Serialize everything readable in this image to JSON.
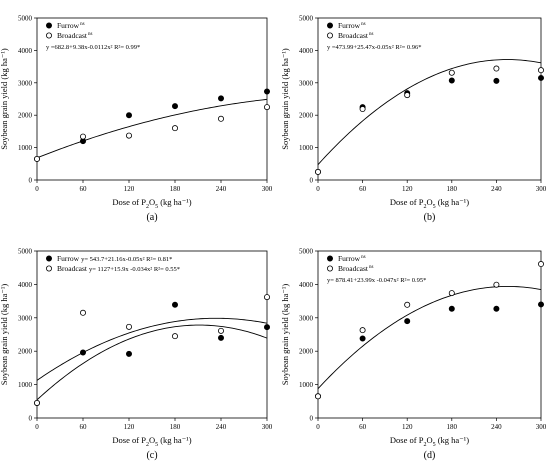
{
  "chart_data": [
    {
      "type": "scatter",
      "caption": "(a)",
      "ylabel": "Soybean grain yield (kg ha⁻¹)",
      "xlabel_parts": [
        "Dose of P",
        "2",
        "O",
        "5",
        " (kg ha⁻¹)"
      ],
      "xticks": [
        0,
        60,
        120,
        180,
        240,
        300
      ],
      "yticks": [
        0,
        1000,
        2000,
        3000,
        4000,
        5000
      ],
      "xlim": [
        0,
        300
      ],
      "ylim": [
        0,
        5000
      ],
      "legend_position": "top-left",
      "series": [
        {
          "name": "Furrow",
          "suffix": "ns",
          "marker": "filled",
          "x": [
            0,
            60,
            120,
            180,
            240,
            300
          ],
          "y": [
            650,
            1200,
            2000,
            2280,
            2520,
            2730
          ]
        },
        {
          "name": "Broadcast",
          "suffix": "ns",
          "marker": "open",
          "x": [
            0,
            60,
            120,
            180,
            240,
            300
          ],
          "y": [
            650,
            1340,
            1370,
            1600,
            1890,
            2250
          ]
        }
      ],
      "equation": "y =682.8+9.38x-0.0112x² R²= 0.99*",
      "curves": [
        {
          "a": 682.8,
          "b": 9.38,
          "c": -0.0112
        }
      ]
    },
    {
      "type": "scatter",
      "caption": "(b)",
      "ylabel": "Soybean grain yield (kg ha⁻¹)",
      "xlabel_parts": [
        "Dose of P",
        "2",
        "O",
        "5",
        " (kg ha⁻¹)"
      ],
      "xticks": [
        0,
        60,
        120,
        180,
        240,
        300
      ],
      "yticks": [
        0,
        1000,
        2000,
        3000,
        4000,
        5000
      ],
      "xlim": [
        0,
        300
      ],
      "ylim": [
        0,
        5000
      ],
      "legend_position": "top-left",
      "series": [
        {
          "name": "Furrow",
          "suffix": "ns",
          "marker": "filled",
          "x": [
            0,
            60,
            120,
            180,
            240,
            300
          ],
          "y": [
            250,
            2250,
            2680,
            3070,
            3060,
            3150
          ]
        },
        {
          "name": "Broadcast",
          "suffix": "ns",
          "marker": "open",
          "x": [
            0,
            60,
            120,
            180,
            240,
            300
          ],
          "y": [
            250,
            2190,
            2620,
            3310,
            3440,
            3390
          ]
        }
      ],
      "equation": "y =473.99+25.47x-0.05x² R²= 0.96*",
      "curves": [
        {
          "a": 473.99,
          "b": 25.47,
          "c": -0.05
        }
      ]
    },
    {
      "type": "scatter",
      "caption": "(c)",
      "ylabel": "Soybean grain yield (kg ha⁻¹)",
      "xlabel_parts": [
        "Dose of P",
        "2",
        "O",
        "5",
        " (kg ha⁻¹)"
      ],
      "xticks": [
        0,
        60,
        120,
        180,
        240,
        300
      ],
      "yticks": [
        0,
        1000,
        2000,
        3000,
        4000,
        5000
      ],
      "xlim": [
        0,
        300
      ],
      "ylim": [
        0,
        5000
      ],
      "legend_position": "top-left",
      "series": [
        {
          "name": "Furrow",
          "marker": "filled",
          "equation": "y= 543.7+21.16x-0.05x² R²= 0.81*",
          "x": [
            0,
            60,
            120,
            180,
            240,
            300
          ],
          "y": [
            450,
            1960,
            1920,
            3390,
            2400,
            2720
          ]
        },
        {
          "name": "Broadcast",
          "marker": "open",
          "equation": "y= 1127+15.9x -0.034x² R²= 0.55*",
          "x": [
            0,
            60,
            120,
            180,
            240,
            300
          ],
          "y": [
            450,
            3150,
            2730,
            2450,
            2610,
            3620
          ]
        }
      ],
      "curves": [
        {
          "a": 543.7,
          "b": 21.16,
          "c": -0.05
        },
        {
          "a": 1127,
          "b": 15.9,
          "c": -0.034
        }
      ]
    },
    {
      "type": "scatter",
      "caption": "(d)",
      "ylabel": "Soybean grain yield (kg ha⁻¹)",
      "xlabel_parts": [
        "Dose of P",
        "2",
        "O",
        "5",
        " (kg ha⁻¹)"
      ],
      "xticks": [
        0,
        60,
        120,
        180,
        240,
        300
      ],
      "yticks": [
        0,
        1000,
        2000,
        3000,
        4000,
        5000
      ],
      "xlim": [
        0,
        300
      ],
      "ylim": [
        0,
        5000
      ],
      "legend_position": "top-left",
      "series": [
        {
          "name": "Furrow",
          "suffix": "ns",
          "marker": "filled",
          "x": [
            0,
            60,
            120,
            180,
            240,
            300
          ],
          "y": [
            650,
            2380,
            2900,
            3270,
            3270,
            3400
          ]
        },
        {
          "name": "Broadcast",
          "suffix": "ns",
          "marker": "open",
          "x": [
            0,
            60,
            120,
            180,
            240,
            300
          ],
          "y": [
            650,
            2630,
            3390,
            3740,
            3990,
            4610
          ]
        }
      ],
      "equation": "y= 878.41+23.99x -0.047x² R²= 0.95*",
      "curves": [
        {
          "a": 878.41,
          "b": 23.99,
          "c": -0.047
        }
      ]
    }
  ]
}
